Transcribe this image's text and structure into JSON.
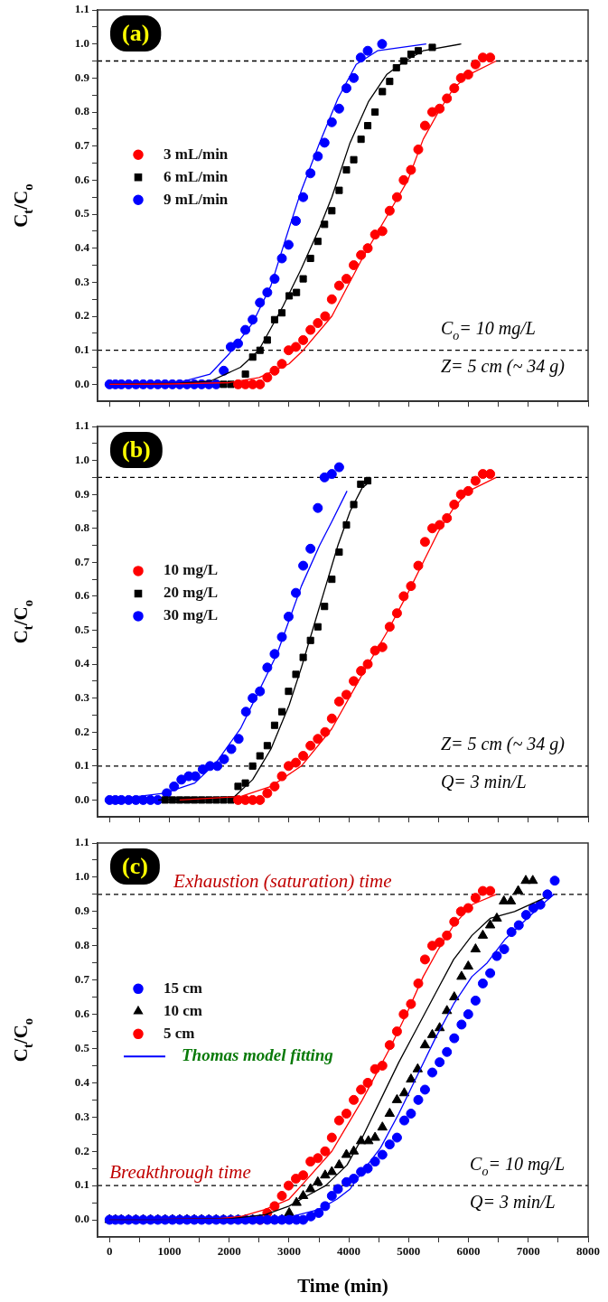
{
  "chart_data": [
    {
      "type": "scatter",
      "title": "(a)",
      "ylabel": "C$_{t}$/C$_{o}$",
      "xlim": [
        -200,
        8000
      ],
      "ylim": [
        -0.05,
        1.1
      ],
      "xticks": [
        0,
        {
          "value": 500,
          "label": null
        },
        1000,
        {
          "value": 1500,
          "label": null
        },
        2000,
        {
          "value": 2500,
          "label": null
        },
        3000,
        {
          "value": 3500,
          "label": null
        },
        4000,
        {
          "value": 4500,
          "label": null
        },
        5000,
        {
          "value": 5500,
          "label": null
        },
        6000,
        {
          "value": 6500,
          "label": null
        },
        7000,
        {
          "value": 7500,
          "label": null
        },
        8000
      ],
      "yticks": [
        {
          "value": 0,
          "label": "0.0"
        },
        {
          "value": 0.05,
          "label": null
        },
        0.1,
        {
          "value": 0.15,
          "label": null
        },
        0.2,
        {
          "value": 0.25,
          "label": null
        },
        0.3,
        {
          "value": 0.35,
          "label": null
        },
        0.4,
        {
          "value": 0.45,
          "label": null
        },
        0.5,
        {
          "value": 0.55,
          "label": null
        },
        0.6,
        {
          "value": 0.65,
          "label": null
        },
        0.7,
        {
          "value": 0.75,
          "label": null
        },
        0.8,
        {
          "value": 0.85,
          "label": null
        },
        0.9,
        {
          "value": 0.95,
          "label": null
        },
        {
          "value": 1,
          "label": "1.0"
        },
        {
          "value": 1.05,
          "label": null
        },
        1.1
      ],
      "tick_labels": "y",
      "legend": "left",
      "marker": "circle",
      "ref_lines": [
        {
          "axis": "y",
          "value": 0.95,
          "color": "#000000",
          "line_style": "dashed"
        },
        {
          "axis": "y",
          "value": 0.1,
          "color": "#000000",
          "line_style": "dashed"
        }
      ],
      "annotations": [
        "C$_{o}$= 10 mg/L",
        "Z= 5 cm (~ 34 g)"
      ],
      "series": [
        {
          "name": "3 mL/min",
          "color": "#ff0000",
          "x": [
            2149,
            2271,
            2393,
            2515,
            2637,
            2759,
            2881,
            2993,
            3115,
            3237,
            3359,
            3482,
            3604,
            3716,
            3838,
            3960,
            4082,
            4204,
            4316,
            4438,
            4561,
            4683,
            4805,
            4917,
            5039,
            5161,
            5273,
            5395,
            5518,
            5640,
            5762,
            5874,
            5996,
            6118,
            6240,
            6363
          ],
          "values": [
            0,
            0,
            0,
            0,
            0.02,
            0.04,
            0.06,
            0.1,
            0.11,
            0.13,
            0.16,
            0.18,
            0.2,
            0.25,
            0.29,
            0.31,
            0.35,
            0.38,
            0.4,
            0.44,
            0.45,
            0.51,
            0.55,
            0.6,
            0.63,
            0.69,
            0.76,
            0.8,
            0.81,
            0.84,
            0.87,
            0.9,
            0.91,
            0.94,
            0.96,
            0.96
          ]
        },
        {
          "name": "6 mL/min",
          "color": "#000000",
          "marker": "square",
          "x": [
            1905,
            2027,
            2149,
            2271,
            2393,
            2515,
            2637,
            2759,
            2881,
            3003,
            3125,
            3237,
            3359,
            3482,
            3594,
            3716,
            3838,
            3960,
            4082,
            4204,
            4316,
            4438,
            4561,
            4683,
            4795,
            4917,
            5039,
            5161,
            5395
          ],
          "values": [
            0,
            0,
            0,
            0.03,
            0.08,
            0.1,
            0.13,
            0.19,
            0.21,
            0.26,
            0.27,
            0.31,
            0.37,
            0.42,
            0.47,
            0.51,
            0.57,
            0.63,
            0.66,
            0.72,
            0.76,
            0.8,
            0.86,
            0.89,
            0.93,
            0.95,
            0.97,
            0.98,
            0.99
          ]
        },
        {
          "name": "9 mL/min",
          "color": "#0000ff",
          "x": [
            0,
            98,
            197,
            319,
            441,
            563,
            685,
            807,
            929,
            1051,
            1173,
            1295,
            1417,
            1539,
            1661,
            1783,
            1909,
            2026,
            2148,
            2270,
            2392,
            2514,
            2637,
            2759,
            2881,
            2993,
            3115,
            3237,
            3359,
            3482,
            3594,
            3716,
            3838,
            3960,
            4082,
            4199,
            4316,
            4556
          ],
          "values": [
            0,
            0,
            0,
            0,
            0,
            0,
            0,
            0,
            0,
            0,
            0,
            0,
            0,
            0,
            0,
            0,
            0.04,
            0.11,
            0.12,
            0.16,
            0.19,
            0.24,
            0.27,
            0.31,
            0.37,
            0.41,
            0.48,
            0.55,
            0.62,
            0.67,
            0.71,
            0.77,
            0.81,
            0.87,
            0.9,
            0.96,
            0.98,
            1.0
          ]
        },
        {
          "type": "line",
          "color": "#ff0000",
          "marker": "none",
          "x": [
            0,
            1000,
            2000,
            2500,
            3000,
            3237,
            3716,
            4225,
            4657,
            4988,
            5243,
            5497,
            5752,
            6006,
            6464
          ],
          "values": [
            0,
            0.001,
            0.005,
            0.02,
            0.06,
            0.1,
            0.2,
            0.37,
            0.5,
            0.6,
            0.72,
            0.8,
            0.87,
            0.91,
            0.95
          ]
        },
        {
          "type": "line",
          "color": "#000000",
          "marker": "none",
          "x": [
            0,
            1171,
            1680,
            2189,
            2494,
            2901,
            3207,
            3512,
            3716,
            4021,
            4327,
            4632,
            4937,
            5243,
            5879
          ],
          "values": [
            0,
            0.003,
            0.009,
            0.05,
            0.1,
            0.23,
            0.34,
            0.46,
            0.55,
            0.71,
            0.83,
            0.91,
            0.95,
            0.98,
            1.0
          ]
        },
        {
          "type": "line",
          "color": "#0000ff",
          "marker": "none",
          "x": [
            0,
            1171,
            1680,
            2001,
            2392,
            2698,
            3003,
            3207,
            3512,
            3818,
            4123,
            4479,
            5294
          ],
          "values": [
            0,
            0.006,
            0.03,
            0.09,
            0.18,
            0.29,
            0.46,
            0.57,
            0.71,
            0.84,
            0.94,
            0.98,
            1.0
          ]
        }
      ]
    },
    {
      "type": "scatter",
      "title": "(b)",
      "ylabel": "C$_{t}$/C$_{o}$",
      "xlim": [
        -200,
        8000
      ],
      "ylim": [
        -0.05,
        1.1
      ],
      "xticks": [
        0,
        {
          "value": 500,
          "label": null
        },
        1000,
        {
          "value": 1500,
          "label": null
        },
        2000,
        {
          "value": 2500,
          "label": null
        },
        3000,
        {
          "value": 3500,
          "label": null
        },
        4000,
        {
          "value": 4500,
          "label": null
        },
        5000,
        {
          "value": 5500,
          "label": null
        },
        6000,
        {
          "value": 6500,
          "label": null
        },
        7000,
        {
          "value": 7500,
          "label": null
        },
        8000
      ],
      "yticks": [
        {
          "value": 0,
          "label": "0.0"
        },
        {
          "value": 0.05,
          "label": null
        },
        0.1,
        {
          "value": 0.15,
          "label": null
        },
        0.2,
        {
          "value": 0.25,
          "label": null
        },
        0.3,
        {
          "value": 0.35,
          "label": null
        },
        0.4,
        {
          "value": 0.45,
          "label": null
        },
        0.5,
        {
          "value": 0.55,
          "label": null
        },
        0.6,
        {
          "value": 0.65,
          "label": null
        },
        0.7,
        {
          "value": 0.75,
          "label": null
        },
        0.8,
        {
          "value": 0.85,
          "label": null
        },
        0.9,
        {
          "value": 0.95,
          "label": null
        },
        {
          "value": 1,
          "label": "1.0"
        },
        {
          "value": 1.05,
          "label": null
        },
        1.1
      ],
      "tick_labels": "y",
      "legend": "left",
      "marker": "circle",
      "ref_lines": [
        {
          "axis": "y",
          "value": 0.95,
          "color": "#000000",
          "line_style": "dashed"
        },
        {
          "axis": "y",
          "value": 0.1,
          "color": "#000000",
          "line_style": "dashed"
        }
      ],
      "annotations": [
        "Z= 5 cm (~ 34 g)",
        "Q= 3 min/L"
      ],
      "series": [
        {
          "name": "10 mg/L",
          "color": "#ff0000",
          "x": [
            2149,
            2271,
            2393,
            2515,
            2637,
            2759,
            2881,
            2993,
            3115,
            3237,
            3359,
            3482,
            3604,
            3716,
            3838,
            3960,
            4082,
            4204,
            4316,
            4438,
            4561,
            4683,
            4805,
            4917,
            5039,
            5161,
            5273,
            5395,
            5518,
            5640,
            5762,
            5874,
            5996,
            6118,
            6240,
            6363
          ],
          "values": [
            0,
            0,
            0,
            0,
            0.02,
            0.04,
            0.07,
            0.1,
            0.11,
            0.13,
            0.16,
            0.18,
            0.2,
            0.24,
            0.29,
            0.31,
            0.35,
            0.38,
            0.4,
            0.44,
            0.45,
            0.51,
            0.55,
            0.6,
            0.63,
            0.69,
            0.76,
            0.8,
            0.81,
            0.83,
            0.87,
            0.9,
            0.91,
            0.94,
            0.96,
            0.96
          ]
        },
        {
          "name": "20 mg/L",
          "color": "#000000",
          "marker": "square",
          "x": [
            929,
            1051,
            1173,
            1295,
            1417,
            1539,
            1661,
            1783,
            1905,
            2027,
            2148,
            2270,
            2392,
            2514,
            2637,
            2759,
            2881,
            2993,
            3115,
            3237,
            3359,
            3482,
            3594,
            3716,
            3838,
            3960,
            4082,
            4199,
            4316
          ],
          "values": [
            0,
            0,
            0,
            0,
            0,
            0,
            0,
            0,
            0,
            0,
            0.04,
            0.05,
            0.1,
            0.13,
            0.16,
            0.22,
            0.26,
            0.32,
            0.37,
            0.42,
            0.47,
            0.51,
            0.57,
            0.65,
            0.73,
            0.81,
            0.87,
            0.93,
            0.94
          ]
        },
        {
          "name": "30 mg/L",
          "color": "#0000ff",
          "x": [
            0,
            98,
            197,
            319,
            441,
            563,
            685,
            807,
            957,
            1079,
            1201,
            1323,
            1435,
            1558,
            1680,
            1802,
            1914,
            2036,
            2158,
            2280,
            2392,
            2514,
            2637,
            2759,
            2881,
            2993,
            3115,
            3237,
            3359,
            3482,
            3594,
            3716,
            3838
          ],
          "values": [
            0,
            0,
            0,
            0,
            0,
            0,
            0,
            0,
            0.02,
            0.04,
            0.06,
            0.07,
            0.07,
            0.09,
            0.1,
            0.1,
            0.12,
            0.15,
            0.18,
            0.26,
            0.3,
            0.32,
            0.39,
            0.43,
            0.48,
            0.54,
            0.61,
            0.69,
            0.74,
            0.86,
            0.95,
            0.96,
            0.98
          ]
        },
        {
          "type": "line",
          "color": "#ff0000",
          "marker": "none",
          "x": [
            1171,
            2189,
            2698,
            3207,
            3716,
            4225,
            4657,
            4988,
            5243,
            5497,
            5752,
            6006,
            6464
          ],
          "values": [
            0,
            0.01,
            0.04,
            0.1,
            0.21,
            0.37,
            0.5,
            0.61,
            0.7,
            0.79,
            0.86,
            0.91,
            0.95
          ]
        },
        {
          "type": "line",
          "color": "#000000",
          "marker": "none",
          "x": [
            814,
            2087,
            2392,
            2698,
            3003,
            3207,
            3410,
            3614,
            3818,
            4021,
            4225,
            4301
          ],
          "values": [
            0,
            0.01,
            0.06,
            0.15,
            0.28,
            0.39,
            0.51,
            0.63,
            0.75,
            0.85,
            0.92,
            0.93
          ]
        },
        {
          "type": "line",
          "color": "#0000ff",
          "marker": "none",
          "x": [
            0,
            916,
            1425,
            1782,
            2189,
            2494,
            2800,
            3003,
            3207,
            3512,
            3716,
            3970
          ],
          "values": [
            0,
            0.02,
            0.05,
            0.11,
            0.21,
            0.32,
            0.43,
            0.53,
            0.63,
            0.75,
            0.82,
            0.91
          ]
        }
      ]
    },
    {
      "type": "scatter",
      "title": "(c)",
      "xlabel": "Time (min)",
      "ylabel": "C$_{t}$/C$_{o}$",
      "xlim": [
        -200,
        8000
      ],
      "ylim": [
        -0.05,
        1.1
      ],
      "xticks": [
        0,
        {
          "value": 500,
          "label": null
        },
        1000,
        {
          "value": 1500,
          "label": null
        },
        2000,
        {
          "value": 2500,
          "label": null
        },
        3000,
        {
          "value": 3500,
          "label": null
        },
        4000,
        {
          "value": 4500,
          "label": null
        },
        5000,
        {
          "value": 5500,
          "label": null
        },
        6000,
        {
          "value": 6500,
          "label": null
        },
        7000,
        {
          "value": 7500,
          "label": null
        },
        8000
      ],
      "yticks": [
        {
          "value": 0,
          "label": "0.0"
        },
        {
          "value": 0.05,
          "label": null
        },
        0.1,
        {
          "value": 0.15,
          "label": null
        },
        0.2,
        {
          "value": 0.25,
          "label": null
        },
        0.3,
        {
          "value": 0.35,
          "label": null
        },
        0.4,
        {
          "value": 0.45,
          "label": null
        },
        0.5,
        {
          "value": 0.55,
          "label": null
        },
        0.6,
        {
          "value": 0.65,
          "label": null
        },
        0.7,
        {
          "value": 0.75,
          "label": null
        },
        0.8,
        {
          "value": 0.85,
          "label": null
        },
        0.9,
        {
          "value": 0.95,
          "label": null
        },
        {
          "value": 1,
          "label": "1.0"
        },
        {
          "value": 1.05,
          "label": null
        },
        1.1
      ],
      "legend": "left",
      "marker": "circle",
      "ref_lines": [
        {
          "axis": "y",
          "value": 0.95,
          "color": "#000000",
          "line_style": "dashed"
        },
        {
          "axis": "y",
          "value": 0.1,
          "color": "#000000",
          "line_style": "dashed"
        }
      ],
      "annotations": [
        {
          "text": "Exhaustion (saturation) time",
          "x": 1070,
          "y": 0.95
        },
        {
          "text": "Breakthrough time",
          "x": 0,
          "y": 0.1
        },
        "C$_{o}$= 10 mg/L",
        "Q= 3 min/L"
      ],
      "series": [
        {
          "name": "15 cm",
          "color": "#0000ff",
          "x": [
            0,
            98,
            197,
            319,
            441,
            563,
            685,
            807,
            929,
            1051,
            1173,
            1295,
            1417,
            1539,
            1661,
            1783,
            1905,
            2027,
            2149,
            2271,
            2393,
            2515,
            2637,
            2759,
            2881,
            3003,
            3125,
            3237,
            3366,
            3497,
            3604,
            3716,
            3818,
            3960,
            4082,
            4204,
            4316,
            4438,
            4561,
            4683,
            4805,
            4927,
            5039,
            5161,
            5273,
            5395,
            5518,
            5640,
            5762,
            5884,
            5996,
            6118,
            6240,
            6363,
            6474,
            6597,
            6719,
            6841,
            6963,
            7085,
            7202,
            7319,
            7442
          ],
          "values": [
            0,
            0,
            0,
            0,
            0,
            0,
            0,
            0,
            0,
            0,
            0,
            0,
            0,
            0,
            0,
            0,
            0,
            0,
            0,
            0,
            0,
            0,
            0,
            0,
            0,
            0,
            0,
            0,
            0.01,
            0.02,
            0.04,
            0.07,
            0.09,
            0.11,
            0.12,
            0.14,
            0.15,
            0.17,
            0.19,
            0.22,
            0.24,
            0.29,
            0.31,
            0.35,
            0.38,
            0.43,
            0.46,
            0.49,
            0.53,
            0.57,
            0.6,
            0.64,
            0.69,
            0.72,
            0.77,
            0.79,
            0.84,
            0.86,
            0.89,
            0.91,
            0.92,
            0.95,
            0.99
          ]
        },
        {
          "name": "10 cm",
          "color": "#000000",
          "marker": "triangle",
          "x": [
            0,
            98,
            197,
            319,
            441,
            563,
            685,
            807,
            929,
            1051,
            1173,
            1295,
            1417,
            1539,
            1661,
            1783,
            1905,
            2027,
            2149,
            2271,
            2393,
            2515,
            2637,
            2759,
            2881,
            3003,
            3125,
            3237,
            3359,
            3482,
            3604,
            3716,
            3838,
            3960,
            4082,
            4204,
            4327,
            4438,
            4561,
            4683,
            4805,
            4927,
            5039,
            5151,
            5273,
            5395,
            5518,
            5640,
            5762,
            5884,
            5996,
            6118,
            6240,
            6363,
            6474,
            6592,
            6709,
            6831,
            6958,
            7075
          ],
          "values": [
            0,
            0,
            0,
            0,
            0,
            0,
            0,
            0,
            0,
            0,
            0,
            0,
            0,
            0,
            0,
            0,
            0,
            0,
            0,
            0,
            0,
            0,
            0,
            0,
            0,
            0.02,
            0.05,
            0.07,
            0.09,
            0.11,
            0.13,
            0.14,
            0.16,
            0.19,
            0.2,
            0.23,
            0.23,
            0.24,
            0.27,
            0.31,
            0.35,
            0.37,
            0.41,
            0.44,
            0.51,
            0.54,
            0.56,
            0.61,
            0.65,
            0.71,
            0.74,
            0.79,
            0.83,
            0.86,
            0.88,
            0.93,
            0.93,
            0.96,
            0.99,
            0.99
          ]
        },
        {
          "name": "5 cm",
          "color": "#ff0000",
          "x": [
            2515,
            2637,
            2759,
            2881,
            2993,
            3115,
            3237,
            3359,
            3482,
            3604,
            3716,
            3838,
            3960,
            4082,
            4204,
            4316,
            4438,
            4561,
            4683,
            4805,
            4917,
            5039,
            5161,
            5273,
            5395,
            5518,
            5640,
            5762,
            5874,
            5996,
            6118,
            6240,
            6363
          ],
          "values": [
            0,
            0.02,
            0.04,
            0.07,
            0.1,
            0.12,
            0.13,
            0.17,
            0.18,
            0.2,
            0.24,
            0.29,
            0.31,
            0.35,
            0.38,
            0.4,
            0.44,
            0.45,
            0.51,
            0.55,
            0.6,
            0.63,
            0.69,
            0.76,
            0.8,
            0.81,
            0.83,
            0.87,
            0.9,
            0.91,
            0.94,
            0.96,
            0.96
          ]
        },
        {
          "name": "Thomas model fitting",
          "type": "line",
          "color": "#0000ff",
          "marker": "none",
          "x": [
            0,
            2500,
            3000,
            3500,
            3800,
            4021,
            4225,
            4530,
            4836,
            5141,
            5446,
            5752,
            6057,
            6312,
            6617,
            6922,
            7228,
            7431
          ],
          "values": [
            0,
            0.002,
            0.008,
            0.03,
            0.06,
            0.09,
            0.14,
            0.21,
            0.31,
            0.42,
            0.53,
            0.63,
            0.71,
            0.75,
            0.82,
            0.87,
            0.92,
            0.95
          ]
        },
        {
          "type": "line",
          "color": "#000000",
          "marker": "none",
          "x": [
            0,
            2000,
            2600,
            3000,
            3300,
            3614,
            3970,
            4225,
            4530,
            4836,
            5141,
            5446,
            5752,
            6057,
            6363,
            6770,
            7279
          ],
          "values": [
            0,
            0.003,
            0.015,
            0.04,
            0.07,
            0.1,
            0.16,
            0.24,
            0.35,
            0.46,
            0.56,
            0.66,
            0.76,
            0.83,
            0.88,
            0.9,
            0.94
          ]
        },
        {
          "type": "line",
          "color": "#ff0000",
          "marker": "none",
          "x": [
            0,
            1800,
            2200,
            2600,
            3000,
            3207,
            3716,
            4225,
            4683,
            4988,
            5243,
            5497,
            5752,
            6057,
            6464
          ],
          "values": [
            0,
            0.003,
            0.01,
            0.03,
            0.06,
            0.1,
            0.2,
            0.35,
            0.5,
            0.61,
            0.71,
            0.79,
            0.86,
            0.92,
            0.95
          ]
        }
      ]
    }
  ]
}
